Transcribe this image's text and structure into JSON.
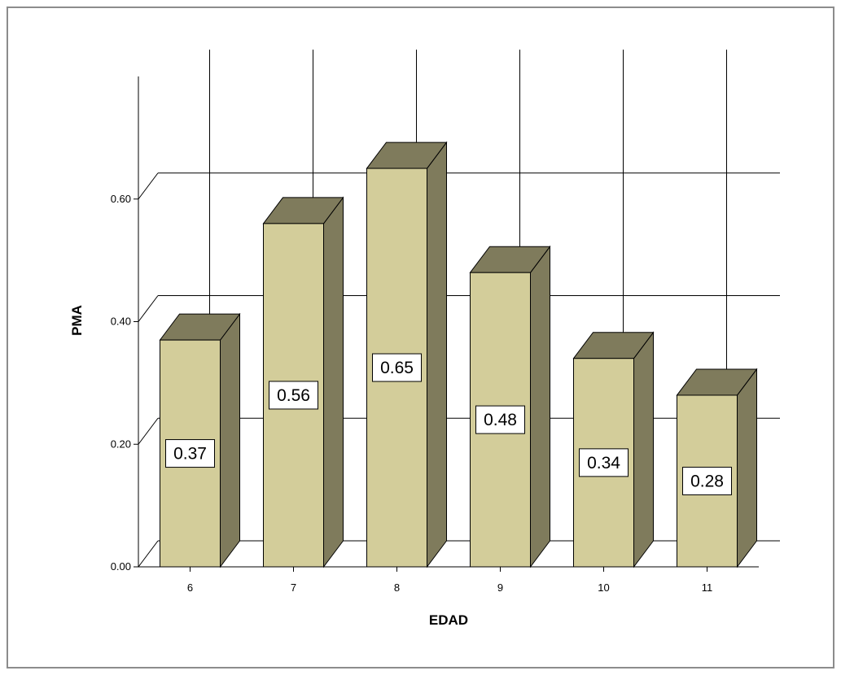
{
  "chart_data": {
    "type": "bar",
    "title": "",
    "xlabel": "EDAD",
    "ylabel": "PMA",
    "categories": [
      "6",
      "7",
      "8",
      "9",
      "10",
      "11"
    ],
    "values": [
      0.37,
      0.56,
      0.65,
      0.48,
      0.34,
      0.28
    ],
    "data_labels": [
      "0.37",
      "0.56",
      "0.65",
      "0.48",
      "0.34",
      "0.28"
    ],
    "y_ticks": [
      "0.00",
      "0.20",
      "0.40",
      "0.60"
    ],
    "ylim": [
      0,
      0.8
    ],
    "grid": true,
    "style": "3d",
    "colors": {
      "bar_front": "#d3cd9a",
      "bar_side": "#7f7b5c",
      "bar_top": "#7f7b5c",
      "gridline": "#000000",
      "frame_border": "#8c8c8c"
    }
  }
}
